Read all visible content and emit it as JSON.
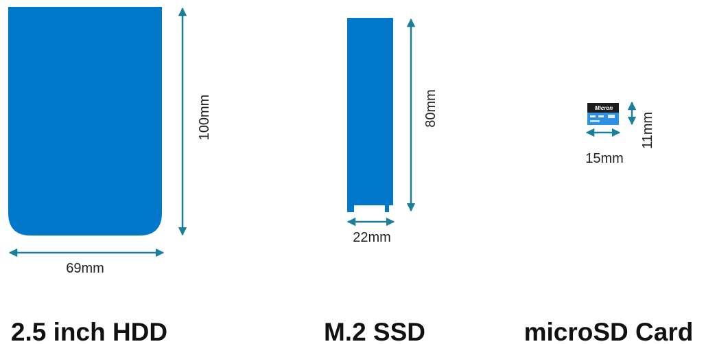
{
  "colors": {
    "device_blue": "#0077c8",
    "arrow_teal": "#1a7f9b",
    "card_black": "#1c1c1c",
    "card_blue": "#2f8fe0",
    "text": "#222222"
  },
  "hdd": {
    "width_label": "69mm",
    "height_label": "100mm",
    "title": "2.5 inch HDD"
  },
  "m2": {
    "width_label": "22mm",
    "height_label": "80mm",
    "title": "M.2 SSD"
  },
  "microsd": {
    "brand": "Micron",
    "width_label": "15mm",
    "height_label": "11mm",
    "title": "microSD Card"
  },
  "icons": [
    "double-arrow-horizontal-icon",
    "double-arrow-vertical-icon"
  ]
}
